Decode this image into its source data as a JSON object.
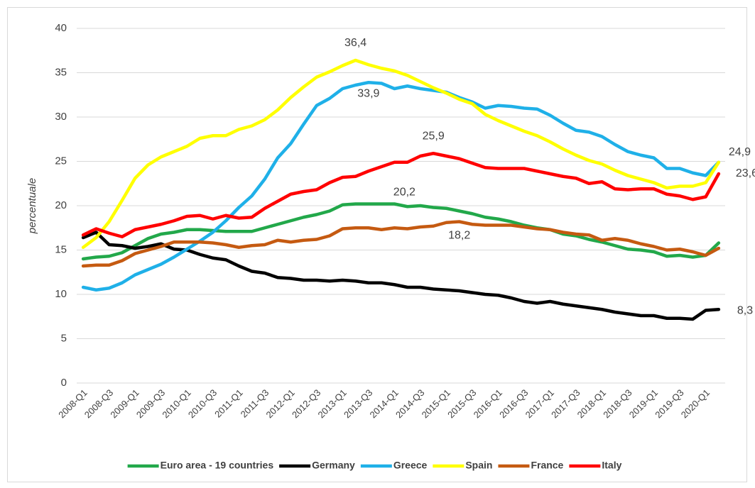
{
  "chart_data": {
    "type": "line",
    "y_label": "percentuale",
    "categories": [
      "2008-Q1",
      null,
      "2008-Q3",
      null,
      "2009-Q1",
      null,
      "2009-Q3",
      null,
      "2010-Q1",
      null,
      "2010-Q3",
      null,
      "2011-Q1",
      null,
      "2011-Q3",
      null,
      "2012-Q1",
      null,
      "2012-Q3",
      null,
      "2013-Q1",
      null,
      "2013-Q3",
      null,
      "2014-Q1",
      null,
      "2014-Q3",
      null,
      "2015-Q1",
      null,
      "2015-Q3",
      null,
      "2016-Q1",
      null,
      "2016-Q3",
      null,
      "2017-Q1",
      null,
      "2017-Q3",
      null,
      "2018-Q1",
      null,
      "2018-Q3",
      null,
      "2019-Q1",
      null,
      "2019-Q3",
      null,
      "2020-Q1",
      null
    ],
    "ylim": [
      0,
      40
    ],
    "yticks": [
      0,
      5,
      10,
      15,
      20,
      25,
      30,
      35,
      40
    ],
    "grid": true,
    "legend": "bottom",
    "series": [
      {
        "name": "Euro area - 19 countries",
        "color": "#22a84a",
        "values": [
          14.0,
          14.2,
          14.3,
          14.7,
          15.5,
          16.3,
          16.8,
          17.0,
          17.3,
          17.3,
          17.2,
          17.1,
          17.1,
          17.1,
          17.5,
          17.9,
          18.3,
          18.7,
          19.0,
          19.4,
          20.1,
          20.2,
          20.2,
          20.2,
          20.2,
          19.9,
          20.0,
          19.8,
          19.7,
          19.4,
          19.1,
          18.7,
          18.5,
          18.2,
          17.8,
          17.5,
          17.3,
          16.8,
          16.6,
          16.2,
          15.9,
          15.5,
          15.1,
          15.0,
          14.8,
          14.3,
          14.4,
          14.2,
          14.4,
          15.8
        ],
        "value_labels": [
          null,
          null,
          null,
          null,
          null,
          null,
          null,
          null,
          null,
          null,
          null,
          null,
          null,
          null,
          null,
          null,
          null,
          null,
          null,
          null,
          null,
          null,
          null,
          null,
          "20,2",
          null,
          null,
          null,
          null,
          null,
          null,
          null,
          null,
          null,
          null,
          null,
          null,
          null,
          null,
          null,
          null,
          null,
          null,
          null,
          null,
          null,
          null,
          null,
          null,
          null
        ]
      },
      {
        "name": "Germany",
        "color": "#000000",
        "values": [
          16.4,
          17.0,
          15.6,
          15.5,
          15.2,
          15.4,
          15.7,
          15.1,
          15.0,
          14.5,
          14.1,
          13.9,
          13.2,
          12.6,
          12.4,
          11.9,
          11.8,
          11.6,
          11.6,
          11.5,
          11.6,
          11.5,
          11.3,
          11.3,
          11.1,
          10.8,
          10.8,
          10.6,
          10.5,
          10.4,
          10.2,
          10.0,
          9.9,
          9.6,
          9.2,
          9.0,
          9.2,
          8.9,
          8.7,
          8.5,
          8.3,
          8.0,
          7.8,
          7.6,
          7.6,
          7.3,
          7.3,
          7.2,
          8.2,
          8.3
        ],
        "value_labels": [
          null,
          null,
          null,
          null,
          null,
          null,
          null,
          null,
          null,
          null,
          null,
          null,
          null,
          null,
          null,
          null,
          null,
          null,
          null,
          null,
          null,
          null,
          null,
          null,
          null,
          null,
          null,
          null,
          null,
          null,
          null,
          null,
          null,
          null,
          null,
          null,
          null,
          null,
          null,
          null,
          null,
          null,
          null,
          null,
          null,
          null,
          null,
          null,
          null,
          "8,3"
        ]
      },
      {
        "name": "Greece",
        "color": "#1fb0e8",
        "values": [
          10.8,
          10.5,
          10.7,
          11.3,
          12.2,
          12.8,
          13.4,
          14.2,
          15.1,
          16.0,
          17.0,
          18.3,
          19.8,
          21.1,
          23.0,
          25.4,
          27.0,
          29.2,
          31.3,
          32.1,
          33.2,
          33.6,
          33.9,
          33.8,
          33.2,
          33.5,
          33.2,
          33.0,
          32.8,
          32.2,
          31.7,
          31.0,
          31.3,
          31.2,
          31.0,
          30.9,
          30.2,
          29.3,
          28.5,
          28.3,
          27.8,
          26.9,
          26.1,
          25.7,
          25.4,
          24.2,
          24.2,
          23.7,
          23.4,
          24.9
        ],
        "value_labels": [
          null,
          null,
          null,
          null,
          null,
          null,
          null,
          null,
          null,
          null,
          null,
          null,
          null,
          null,
          null,
          null,
          null,
          null,
          null,
          null,
          null,
          null,
          "33,9",
          null,
          null,
          null,
          null,
          null,
          null,
          null,
          null,
          null,
          null,
          null,
          null,
          null,
          null,
          null,
          null,
          null,
          null,
          null,
          null,
          null,
          null,
          null,
          null,
          null,
          null,
          null
        ]
      },
      {
        "name": "Spain",
        "color": "#ffff00",
        "values": [
          15.3,
          16.4,
          18.2,
          20.6,
          23.1,
          24.6,
          25.5,
          26.1,
          26.7,
          27.6,
          27.9,
          27.9,
          28.6,
          29.0,
          29.7,
          30.8,
          32.2,
          33.4,
          34.5,
          35.1,
          35.8,
          36.4,
          35.9,
          35.5,
          35.2,
          34.7,
          34.0,
          33.3,
          32.7,
          32.0,
          31.5,
          30.3,
          29.6,
          29.0,
          28.4,
          27.9,
          27.2,
          26.4,
          25.7,
          25.1,
          24.7,
          24.0,
          23.4,
          23.0,
          22.6,
          22.0,
          22.2,
          22.2,
          22.6,
          24.9
        ],
        "value_labels": [
          null,
          null,
          null,
          null,
          null,
          null,
          null,
          null,
          null,
          null,
          null,
          null,
          null,
          null,
          null,
          null,
          null,
          null,
          null,
          null,
          null,
          "36,4",
          null,
          null,
          null,
          null,
          null,
          null,
          null,
          null,
          null,
          null,
          null,
          null,
          null,
          null,
          null,
          null,
          null,
          null,
          null,
          null,
          null,
          null,
          null,
          null,
          null,
          null,
          null,
          "24,9"
        ]
      },
      {
        "name": "France",
        "color": "#c55a11",
        "values": [
          13.2,
          13.3,
          13.3,
          13.8,
          14.6,
          15.0,
          15.4,
          15.9,
          15.9,
          15.9,
          15.8,
          15.6,
          15.3,
          15.5,
          15.6,
          16.1,
          15.9,
          16.1,
          16.2,
          16.6,
          17.4,
          17.5,
          17.5,
          17.3,
          17.5,
          17.4,
          17.6,
          17.7,
          18.1,
          18.2,
          17.9,
          17.8,
          17.8,
          17.8,
          17.6,
          17.4,
          17.3,
          17.0,
          16.8,
          16.7,
          16.1,
          16.3,
          16.1,
          15.7,
          15.4,
          15.0,
          15.1,
          14.8,
          14.4,
          15.2
        ],
        "value_labels": [
          null,
          null,
          null,
          null,
          null,
          null,
          null,
          null,
          null,
          null,
          null,
          null,
          null,
          null,
          null,
          null,
          null,
          null,
          null,
          null,
          null,
          null,
          null,
          null,
          null,
          null,
          null,
          null,
          null,
          "18,2",
          null,
          null,
          null,
          null,
          null,
          null,
          null,
          null,
          null,
          null,
          null,
          null,
          null,
          null,
          null,
          null,
          null,
          null,
          null,
          null
        ]
      },
      {
        "name": "Italy",
        "color": "#ff0000",
        "values": [
          16.7,
          17.4,
          16.9,
          16.5,
          17.3,
          17.6,
          17.9,
          18.3,
          18.8,
          18.9,
          18.5,
          18.9,
          18.6,
          18.7,
          19.7,
          20.5,
          21.3,
          21.6,
          21.8,
          22.6,
          23.2,
          23.3,
          23.9,
          24.4,
          24.9,
          24.9,
          25.6,
          25.9,
          25.6,
          25.3,
          24.8,
          24.3,
          24.2,
          24.2,
          24.2,
          23.9,
          23.6,
          23.3,
          23.1,
          22.5,
          22.7,
          21.9,
          21.8,
          21.9,
          21.9,
          21.3,
          21.1,
          20.7,
          21.0,
          23.6
        ],
        "value_labels": [
          null,
          null,
          null,
          null,
          null,
          null,
          null,
          null,
          null,
          null,
          null,
          null,
          null,
          null,
          null,
          null,
          null,
          null,
          null,
          null,
          null,
          null,
          null,
          null,
          null,
          null,
          null,
          "25,9",
          null,
          null,
          null,
          null,
          null,
          null,
          null,
          null,
          null,
          null,
          null,
          null,
          null,
          null,
          null,
          null,
          null,
          null,
          null,
          null,
          null,
          "23,6"
        ]
      }
    ]
  }
}
